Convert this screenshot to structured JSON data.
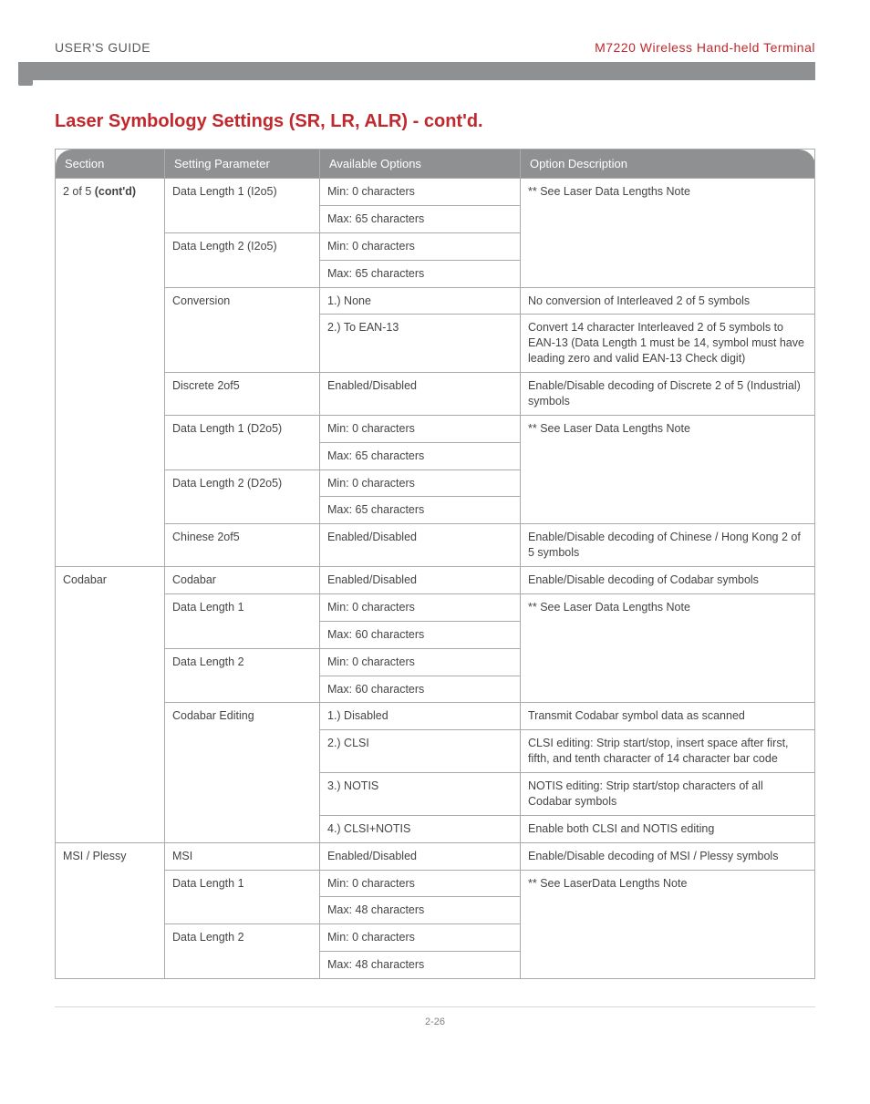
{
  "header": {
    "left": "USER'S GUIDE",
    "right": "M7220 Wireless Hand-held Terminal"
  },
  "title": "Laser Symbology Settings (SR, LR, ALR) - cont'd.",
  "columns": [
    "Section",
    "Setting Parameter",
    "Available Options",
    "Option Description"
  ],
  "rows": [
    {
      "section": "2 of 5 (cont'd)",
      "section_rows": 12,
      "param": "Data Length 1 (I2o5)",
      "param_rows": 2,
      "option": "Min: 0 characters",
      "desc": "** See Laser Data Lengths Note",
      "desc_rows": 4
    },
    {
      "option": "Max: 65 characters"
    },
    {
      "param": "Data Length 2 (I2o5)",
      "param_rows": 2,
      "option": "Min: 0 characters"
    },
    {
      "option": "Max: 65 characters"
    },
    {
      "param": "Conversion",
      "param_rows": 2,
      "option": "1.) None",
      "desc": "No conversion of Interleaved 2 of 5 symbols"
    },
    {
      "option": "2.) To EAN-13",
      "desc": "Convert 14 character Interleaved 2 of 5 symbols to EAN-13 (Data Length 1 must be 14, symbol must have leading zero and valid EAN-13 Check digit)"
    },
    {
      "param": "Discrete 2of5",
      "option": "Enabled/Disabled",
      "desc": "Enable/Disable decoding of Discrete 2 of 5 (Industrial) symbols"
    },
    {
      "param": "Data Length 1 (D2o5)",
      "param_rows": 2,
      "option": "Min: 0 characters",
      "desc": "** See Laser Data Lengths Note",
      "desc_rows": 4
    },
    {
      "option": "Max: 65 characters"
    },
    {
      "param": "Data Length 2 (D2o5)",
      "param_rows": 2,
      "option": "Min: 0 characters"
    },
    {
      "option": "Max: 65 characters"
    },
    {
      "param": "Chinese 2of5",
      "option": "Enabled/Disabled",
      "desc": "Enable/Disable decoding of Chinese / Hong Kong 2 of 5 symbols"
    },
    {
      "section": "Codabar",
      "section_rows": 9,
      "param": "Codabar",
      "option": "Enabled/Disabled",
      "desc": "Enable/Disable decoding of Codabar symbols"
    },
    {
      "param": "Data Length 1",
      "param_rows": 2,
      "option": "Min: 0 characters",
      "desc": "** See Laser Data Lengths Note",
      "desc_rows": 4
    },
    {
      "option": "Max: 60 characters"
    },
    {
      "param": "Data Length 2",
      "param_rows": 2,
      "option": "Min: 0 characters"
    },
    {
      "option": "Max: 60 characters"
    },
    {
      "param": "Codabar Editing",
      "param_rows": 4,
      "option": "1.) Disabled",
      "desc": "Transmit Codabar symbol data as scanned"
    },
    {
      "option": "2.) CLSI",
      "desc": "CLSI editing: Strip start/stop, insert space after first, fifth, and tenth character of 14 character bar code"
    },
    {
      "option": "3.) NOTIS",
      "desc": "NOTIS editing: Strip start/stop characters of all Codabar symbols"
    },
    {
      "option": "4.) CLSI+NOTIS",
      "desc": "Enable both CLSI and NOTIS editing"
    },
    {
      "section": "MSI / Plessy",
      "section_rows": 5,
      "param": "MSI",
      "option": "Enabled/Disabled",
      "desc": "Enable/Disable decoding of MSI / Plessy symbols"
    },
    {
      "param": "Data Length 1",
      "param_rows": 2,
      "option": "Min: 0 characters",
      "desc": "** See LaserData Lengths Note",
      "desc_rows": 4
    },
    {
      "option": "Max: 48 characters"
    },
    {
      "param": "Data Length 2",
      "param_rows": 2,
      "option": "Min: 0 characters"
    },
    {
      "option": "Max: 48 characters"
    }
  ],
  "footer": {
    "page": "2-26"
  }
}
